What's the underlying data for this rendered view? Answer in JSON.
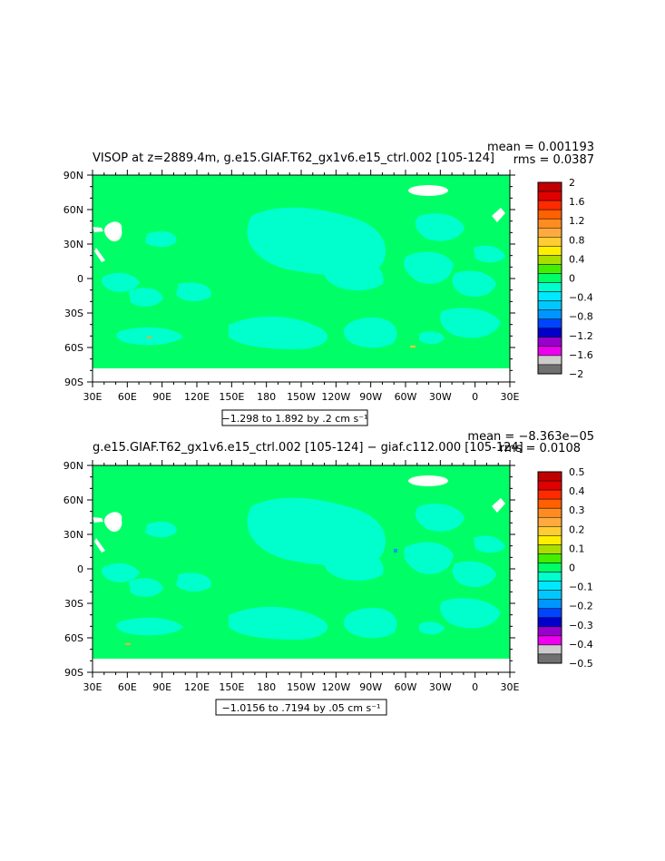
{
  "chart_data": [
    {
      "type": "heatmap",
      "title": "VISOP at z=2889.4m, g.e15.GIAF.T62_gx1v6.e15_ctrl.002 [105-124]",
      "stats": [
        "mean = 0.001193",
        "rms = 0.0387"
      ],
      "x_ticks": [
        "30E",
        "60E",
        "90E",
        "120E",
        "150E",
        "180",
        "150W",
        "120W",
        "90W",
        "60W",
        "30W",
        "0",
        "30E"
      ],
      "y_ticks": [
        "90N",
        "60N",
        "30N",
        "0",
        "30S",
        "60S",
        "90S"
      ],
      "xlim": [
        30,
        390
      ],
      "ylim": [
        -90,
        90
      ],
      "contour_label": "−1.298 to 1.892 by .2 cm s⁻¹",
      "colorbar_labels": [
        "2",
        "1.6",
        "1.2",
        "0.8",
        "0.4",
        "0",
        "−0.4",
        "−0.8",
        "−1.2",
        "−1.6",
        "−2"
      ],
      "colorbar_levels": [
        2,
        1.8,
        1.6,
        1.4,
        1.2,
        1,
        0.8,
        0.6,
        0.4,
        0.2,
        0,
        -0.2,
        -0.4,
        -0.6,
        -0.8,
        -1,
        -1.2,
        -1.4,
        -1.6,
        -1.8,
        -2
      ],
      "colors": {
        "colorbar": [
          "#c00000",
          "#e00000",
          "#ff2a00",
          "#ff6000",
          "#ff8c20",
          "#ffaa40",
          "#ffcc33",
          "#ffee00",
          "#aadd00",
          "#44ee00",
          "#00ff66",
          "#00ffcc",
          "#00e8ff",
          "#00c8ff",
          "#0096ff",
          "#0044ff",
          "#0000c8",
          "#9900cc",
          "#ee00ee",
          "#cccccc",
          "#707070"
        ],
        "dominant_positive": "#00ff66",
        "dominant_negative": "#00ffcc"
      }
    },
    {
      "type": "heatmap",
      "title": "g.e15.GIAF.T62_gx1v6.e15_ctrl.002 [105-124] − giaf.c112.000 [105-124]",
      "stats": [
        "mean = −8.363e−05",
        "rms = 0.0108"
      ],
      "x_ticks": [
        "30E",
        "60E",
        "90E",
        "120E",
        "150E",
        "180",
        "150W",
        "120W",
        "90W",
        "60W",
        "30W",
        "0",
        "30E"
      ],
      "y_ticks": [
        "90N",
        "60N",
        "30N",
        "0",
        "30S",
        "60S",
        "90S"
      ],
      "xlim": [
        30,
        390
      ],
      "ylim": [
        -90,
        90
      ],
      "contour_label": "−1.0156 to .7194 by .05 cm s⁻¹",
      "colorbar_labels": [
        "0.5",
        "0.4",
        "0.3",
        "0.2",
        "0.1",
        "0",
        "−0.1",
        "−0.2",
        "−0.3",
        "−0.4",
        "−0.5"
      ],
      "colorbar_levels": [
        0.5,
        0.45,
        0.4,
        0.35,
        0.3,
        0.25,
        0.2,
        0.15,
        0.1,
        0.05,
        0,
        -0.05,
        -0.1,
        -0.15,
        -0.2,
        -0.25,
        -0.3,
        -0.35,
        -0.4,
        -0.45,
        -0.5
      ],
      "colors": {
        "colorbar": [
          "#c00000",
          "#e00000",
          "#ff2a00",
          "#ff6000",
          "#ff8c20",
          "#ffaa40",
          "#ffcc33",
          "#ffee00",
          "#aadd00",
          "#44ee00",
          "#00ff66",
          "#00ffcc",
          "#00e8ff",
          "#00c8ff",
          "#0096ff",
          "#0044ff",
          "#0000c8",
          "#9900cc",
          "#ee00ee",
          "#cccccc",
          "#707070"
        ],
        "dominant_positive": "#00ff66",
        "dominant_negative": "#00ffcc"
      }
    }
  ]
}
